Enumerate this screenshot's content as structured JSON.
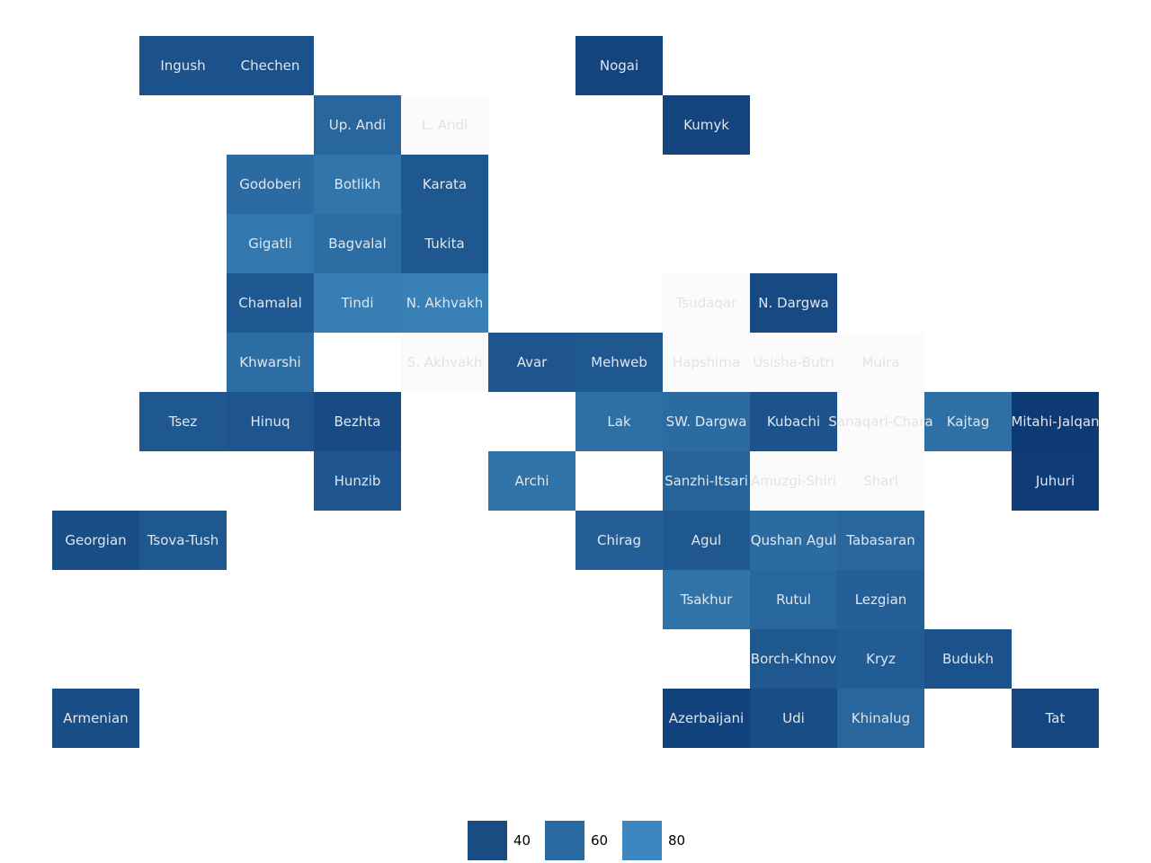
{
  "chart_data": {
    "type": "heatmap",
    "title": "",
    "xlabel": "",
    "ylabel": "",
    "grid": false,
    "legend_placement": "bottom-center",
    "color_scale": {
      "palette": "Blues",
      "domain": [
        0,
        100
      ],
      "light": "#4292c6",
      "dark": "#08306b",
      "no_value": "#fbfbfb",
      "label_color": "#dfe6ee",
      "missing_label_color": "#e3e3e3"
    },
    "legend": [
      {
        "label": "40",
        "value": 40,
        "color": "#1a4b81"
      },
      {
        "label": "60",
        "value": 60,
        "color": "#2a68a2"
      },
      {
        "label": "80",
        "value": 80,
        "color": "#3e86bf"
      }
    ],
    "cells": [
      {
        "label": "Ingush",
        "col": 1,
        "row": 0,
        "value": 35
      },
      {
        "label": "Chechen",
        "col": 2,
        "row": 0,
        "value": 35
      },
      {
        "label": "Nogai",
        "col": 6,
        "row": 0,
        "value": 20
      },
      {
        "label": "Up. Andi",
        "col": 3,
        "row": 1,
        "value": 55
      },
      {
        "label": "L. Andi",
        "col": 4,
        "row": 1,
        "value": null
      },
      {
        "label": "Kumyk",
        "col": 7,
        "row": 1,
        "value": 20
      },
      {
        "label": "Godoberi",
        "col": 2,
        "row": 2,
        "value": 60
      },
      {
        "label": "Botlikh",
        "col": 3,
        "row": 2,
        "value": 70
      },
      {
        "label": "Karata",
        "col": 4,
        "row": 2,
        "value": 40
      },
      {
        "label": "Gigatli",
        "col": 2,
        "row": 3,
        "value": 72
      },
      {
        "label": "Bagvalal",
        "col": 3,
        "row": 3,
        "value": 62
      },
      {
        "label": "Tukita",
        "col": 4,
        "row": 3,
        "value": 40
      },
      {
        "label": "Chamalal",
        "col": 2,
        "row": 4,
        "value": 42
      },
      {
        "label": "Tindi",
        "col": 3,
        "row": 4,
        "value": 80
      },
      {
        "label": "N. Akhvakh",
        "col": 4,
        "row": 4,
        "value": 82
      },
      {
        "label": "Tsudaqar",
        "col": 7,
        "row": 4,
        "value": null
      },
      {
        "label": "N. Dargwa",
        "col": 8,
        "row": 4,
        "value": 25
      },
      {
        "label": "Khwarshi",
        "col": 2,
        "row": 5,
        "value": 62
      },
      {
        "label": "S. Akhvakh",
        "col": 4,
        "row": 5,
        "value": null
      },
      {
        "label": "Avar",
        "col": 5,
        "row": 5,
        "value": 38
      },
      {
        "label": "Mehweb",
        "col": 6,
        "row": 5,
        "value": 40
      },
      {
        "label": "Hapshima",
        "col": 7,
        "row": 5,
        "value": null
      },
      {
        "label": "Usisha-Butri",
        "col": 8,
        "row": 5,
        "value": null
      },
      {
        "label": "Muira",
        "col": 9,
        "row": 5,
        "value": null
      },
      {
        "label": "Tsez",
        "col": 1,
        "row": 6,
        "value": 40
      },
      {
        "label": "Hinuq",
        "col": 2,
        "row": 6,
        "value": 38
      },
      {
        "label": "Bezhta",
        "col": 3,
        "row": 6,
        "value": 28
      },
      {
        "label": "Lak",
        "col": 6,
        "row": 6,
        "value": 65
      },
      {
        "label": "SW. Dargwa",
        "col": 7,
        "row": 6,
        "value": 60
      },
      {
        "label": "Kubachi",
        "col": 8,
        "row": 6,
        "value": 36
      },
      {
        "label": "Sanaqari-Chara",
        "col": 9,
        "row": 6,
        "value": null
      },
      {
        "label": "Kajtag",
        "col": 10,
        "row": 6,
        "value": 65
      },
      {
        "label": "Mitahi-Jalqan",
        "col": 11,
        "row": 6,
        "value": 10
      },
      {
        "label": "Hunzib",
        "col": 3,
        "row": 7,
        "value": 38
      },
      {
        "label": "Archi",
        "col": 5,
        "row": 7,
        "value": 68
      },
      {
        "label": "Sanzhi-Itsari",
        "col": 7,
        "row": 7,
        "value": 52
      },
      {
        "label": "Amuzgi-Shiri",
        "col": 8,
        "row": 7,
        "value": null
      },
      {
        "label": "Shari",
        "col": 9,
        "row": 7,
        "value": null
      },
      {
        "label": "Juhuri",
        "col": 11,
        "row": 7,
        "value": 12
      },
      {
        "label": "Georgian",
        "col": 0,
        "row": 8,
        "value": 30
      },
      {
        "label": "Tsova-Tush",
        "col": 1,
        "row": 8,
        "value": 40
      },
      {
        "label": "Chirag",
        "col": 6,
        "row": 8,
        "value": 48
      },
      {
        "label": "Agul",
        "col": 7,
        "row": 8,
        "value": 40
      },
      {
        "label": "Qushan Agul",
        "col": 8,
        "row": 8,
        "value": 60
      },
      {
        "label": "Tabasaran",
        "col": 9,
        "row": 8,
        "value": 55
      },
      {
        "label": "Tsakhur",
        "col": 7,
        "row": 9,
        "value": 68
      },
      {
        "label": "Rutul",
        "col": 8,
        "row": 9,
        "value": 56
      },
      {
        "label": "Lezgian",
        "col": 9,
        "row": 9,
        "value": 48
      },
      {
        "label": "Borch-Khnov",
        "col": 8,
        "row": 10,
        "value": 40
      },
      {
        "label": "Kryz",
        "col": 9,
        "row": 10,
        "value": 45
      },
      {
        "label": "Budukh",
        "col": 10,
        "row": 10,
        "value": 35
      },
      {
        "label": "Armenian",
        "col": 0,
        "row": 11,
        "value": 30
      },
      {
        "label": "Azerbaijani",
        "col": 7,
        "row": 11,
        "value": 18
      },
      {
        "label": "Udi",
        "col": 8,
        "row": 11,
        "value": 30
      },
      {
        "label": "Khinalug",
        "col": 9,
        "row": 11,
        "value": 55
      },
      {
        "label": "Tat",
        "col": 11,
        "row": 11,
        "value": 22
      }
    ]
  }
}
